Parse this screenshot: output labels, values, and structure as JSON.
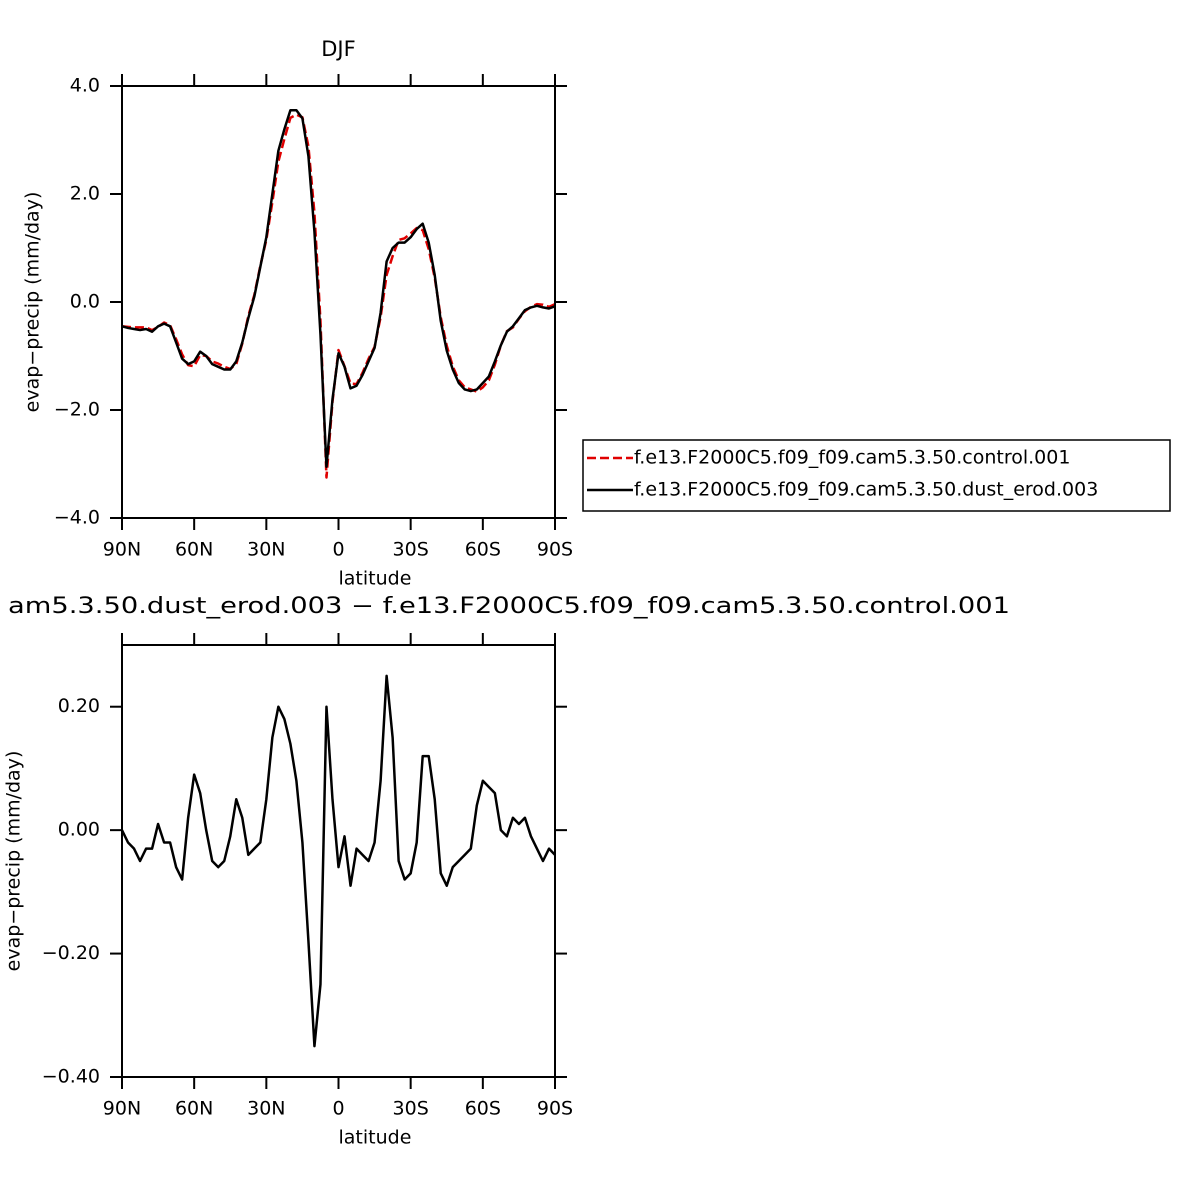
{
  "chart_data": [
    {
      "type": "line",
      "title": "DJF",
      "x_label": "latitude",
      "y_label": "evap−precip (mm/day)",
      "xlim": [
        90,
        -90
      ],
      "xticks": [
        {
          "value": 90,
          "label": "90N"
        },
        {
          "value": 60,
          "label": "60N"
        },
        {
          "value": 30,
          "label": "30N"
        },
        0,
        {
          "value": -30,
          "label": "30S"
        },
        {
          "value": -60,
          "label": "60S"
        },
        {
          "value": -90,
          "label": "90S"
        }
      ],
      "ylim": [
        -4,
        4
      ],
      "yticks": [
        {
          "value": -4,
          "label": "−4.0"
        },
        {
          "value": -2,
          "label": "−2.0"
        },
        {
          "value": 0,
          "label": "0.0"
        },
        {
          "value": 2,
          "label": "2.0"
        },
        {
          "value": 4,
          "label": "4.0"
        }
      ],
      "legend": "right",
      "x": [
        90,
        87.5,
        85,
        82.5,
        80,
        77.5,
        75,
        72.5,
        70,
        67.5,
        65,
        62.5,
        60,
        57.5,
        55,
        52.5,
        50,
        47.5,
        45,
        42.5,
        40,
        37.5,
        35,
        32.5,
        30,
        27.5,
        25,
        22.5,
        20,
        17.5,
        15,
        12.5,
        10,
        7.5,
        5,
        2.5,
        0,
        -2.5,
        -5,
        -7.5,
        -10,
        -12.5,
        -15,
        -17.5,
        -20,
        -22.5,
        -25,
        -27.5,
        -30,
        -32.5,
        -35,
        -37.5,
        -40,
        -42.5,
        -45,
        -47.5,
        -50,
        -52.5,
        -55,
        -57.5,
        -60,
        -62.5,
        -65,
        -67.5,
        -70,
        -72.5,
        -75,
        -77.5,
        -80,
        -82.5,
        -85,
        -87.5,
        -90
      ],
      "series": [
        {
          "name": "f.e13.F2000C5.f09_f09.cam5.3.50.control.001",
          "color": "#e00000",
          "dash": "dashed",
          "values": [
            -0.45,
            -0.46,
            -0.47,
            -0.47,
            -0.47,
            -0.52,
            -0.46,
            -0.38,
            -0.43,
            -0.69,
            -0.97,
            -1.17,
            -1.19,
            -0.98,
            -1.0,
            -1.1,
            -1.14,
            -1.2,
            -1.24,
            -1.15,
            -0.77,
            -0.26,
            0.13,
            0.67,
            1.15,
            1.85,
            2.6,
            3.02,
            3.41,
            3.47,
            3.42,
            2.88,
            1.65,
            -0.35,
            -3.25,
            -1.85,
            -0.89,
            -1.19,
            -1.51,
            -1.52,
            -1.31,
            -1.05,
            -0.83,
            -0.28,
            0.5,
            0.85,
            1.15,
            1.18,
            1.27,
            1.37,
            1.33,
            0.98,
            0.45,
            -0.28,
            -0.81,
            -1.19,
            -1.45,
            -1.58,
            -1.62,
            -1.66,
            -1.58,
            -1.45,
            -1.16,
            -0.8,
            -0.54,
            -0.47,
            -0.31,
            -0.17,
            -0.09,
            -0.04,
            -0.05,
            -0.09,
            -0.04
          ]
        },
        {
          "name": "f.e13.F2000C5.f09_f09.cam5.3.50.dust_erod.003",
          "color": "#000000",
          "dash": "solid",
          "values": [
            -0.45,
            -0.48,
            -0.5,
            -0.52,
            -0.5,
            -0.55,
            -0.45,
            -0.4,
            -0.45,
            -0.75,
            -1.05,
            -1.15,
            -1.1,
            -0.92,
            -1.0,
            -1.15,
            -1.2,
            -1.25,
            -1.25,
            -1.1,
            -0.75,
            -0.3,
            0.1,
            0.65,
            1.2,
            2.0,
            2.8,
            3.2,
            3.55,
            3.55,
            3.4,
            2.7,
            1.3,
            -0.6,
            -3.05,
            -1.8,
            -0.95,
            -1.2,
            -1.6,
            -1.55,
            -1.35,
            -1.1,
            -0.85,
            -0.2,
            0.75,
            1.0,
            1.1,
            1.1,
            1.2,
            1.35,
            1.45,
            1.1,
            0.5,
            -0.35,
            -0.9,
            -1.25,
            -1.5,
            -1.62,
            -1.65,
            -1.62,
            -1.5,
            -1.38,
            -1.1,
            -0.8,
            -0.55,
            -0.45,
            -0.3,
            -0.15,
            -0.1,
            -0.07,
            -0.1,
            -0.12,
            -0.08
          ]
        }
      ]
    },
    {
      "type": "line",
      "title": "am5.3.50.dust_erod.003 − f.e13.F2000C5.f09_f09.cam5.3.50.control.001",
      "x_label": "latitude",
      "y_label": "evap−precip (mm/day)",
      "xlim": [
        90,
        -90
      ],
      "xticks": [
        {
          "value": 90,
          "label": "90N"
        },
        {
          "value": 60,
          "label": "60N"
        },
        {
          "value": 30,
          "label": "30N"
        },
        0,
        {
          "value": -30,
          "label": "30S"
        },
        {
          "value": -60,
          "label": "60S"
        },
        {
          "value": -90,
          "label": "90S"
        }
      ],
      "ylim": [
        -0.4,
        0.3
      ],
      "yticks": [
        {
          "value": -0.4,
          "label": "−0.40"
        },
        {
          "value": -0.2,
          "label": "−0.20"
        },
        {
          "value": 0,
          "label": "0.00"
        },
        {
          "value": 0.2,
          "label": "0.20"
        }
      ],
      "x": [
        90,
        87.5,
        85,
        82.5,
        80,
        77.5,
        75,
        72.5,
        70,
        67.5,
        65,
        62.5,
        60,
        57.5,
        55,
        52.5,
        50,
        47.5,
        45,
        42.5,
        40,
        37.5,
        35,
        32.5,
        30,
        27.5,
        25,
        22.5,
        20,
        17.5,
        15,
        12.5,
        10,
        7.5,
        5,
        2.5,
        0,
        -2.5,
        -5,
        -7.5,
        -10,
        -12.5,
        -15,
        -17.5,
        -20,
        -22.5,
        -25,
        -27.5,
        -30,
        -32.5,
        -35,
        -37.5,
        -40,
        -42.5,
        -45,
        -47.5,
        -50,
        -52.5,
        -55,
        -57.5,
        -60,
        -62.5,
        -65,
        -67.5,
        -70,
        -72.5,
        -75,
        -77.5,
        -80,
        -82.5,
        -85,
        -87.5,
        -90
      ],
      "series": [
        {
          "color": "#000000",
          "dash": "solid",
          "values": [
            0.0,
            -0.02,
            -0.03,
            -0.05,
            -0.03,
            -0.03,
            0.01,
            -0.02,
            -0.02,
            -0.06,
            -0.08,
            0.02,
            0.09,
            0.06,
            0.0,
            -0.05,
            -0.06,
            -0.05,
            -0.01,
            0.05,
            0.02,
            -0.04,
            -0.03,
            -0.02,
            0.05,
            0.15,
            0.2,
            0.18,
            0.14,
            0.08,
            -0.02,
            -0.18,
            -0.35,
            -0.25,
            0.2,
            0.05,
            -0.06,
            -0.01,
            -0.09,
            -0.03,
            -0.04,
            -0.05,
            -0.02,
            0.08,
            0.25,
            0.15,
            -0.05,
            -0.08,
            -0.07,
            -0.02,
            0.12,
            0.12,
            0.05,
            -0.07,
            -0.09,
            -0.06,
            -0.05,
            -0.04,
            -0.03,
            0.04,
            0.08,
            0.07,
            0.06,
            0.0,
            -0.01,
            0.02,
            0.01,
            0.02,
            -0.01,
            -0.03,
            -0.05,
            -0.03,
            -0.04
          ]
        }
      ]
    }
  ]
}
